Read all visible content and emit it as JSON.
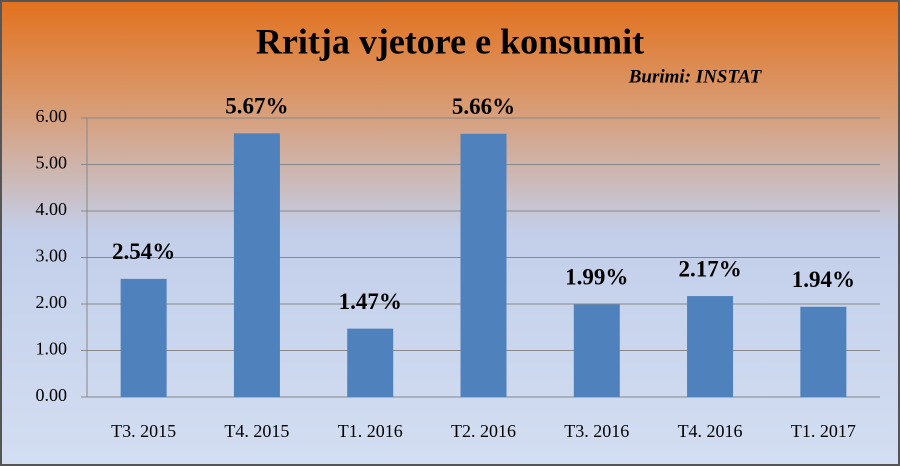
{
  "chart_data": {
    "type": "bar",
    "title": "Rritja vjetore e konsumit",
    "subtitle": "Burimi: INSTAT",
    "categories": [
      "T3. 2015",
      "T4. 2015",
      "T1. 2016",
      "T2. 2016",
      "T3. 2016",
      "T4. 2016",
      "T1. 2017"
    ],
    "values": [
      2.54,
      5.67,
      1.47,
      5.66,
      1.99,
      2.17,
      1.94
    ],
    "value_labels": [
      "2.54%",
      "5.67%",
      "1.47%",
      "5.66%",
      "1.99%",
      "2.17%",
      "1.94%"
    ],
    "color": "#4f81bd",
    "ylim": [
      0,
      6
    ],
    "yticks": [
      {
        "value": 0,
        "label": "0.00"
      },
      {
        "value": 1,
        "label": "1.00"
      },
      {
        "value": 2,
        "label": "2.00"
      },
      {
        "value": 3,
        "label": "3.00"
      },
      {
        "value": 4,
        "label": "4.00"
      },
      {
        "value": 5,
        "label": "5.00"
      },
      {
        "value": 6,
        "label": "6.00"
      }
    ],
    "grid": true
  }
}
